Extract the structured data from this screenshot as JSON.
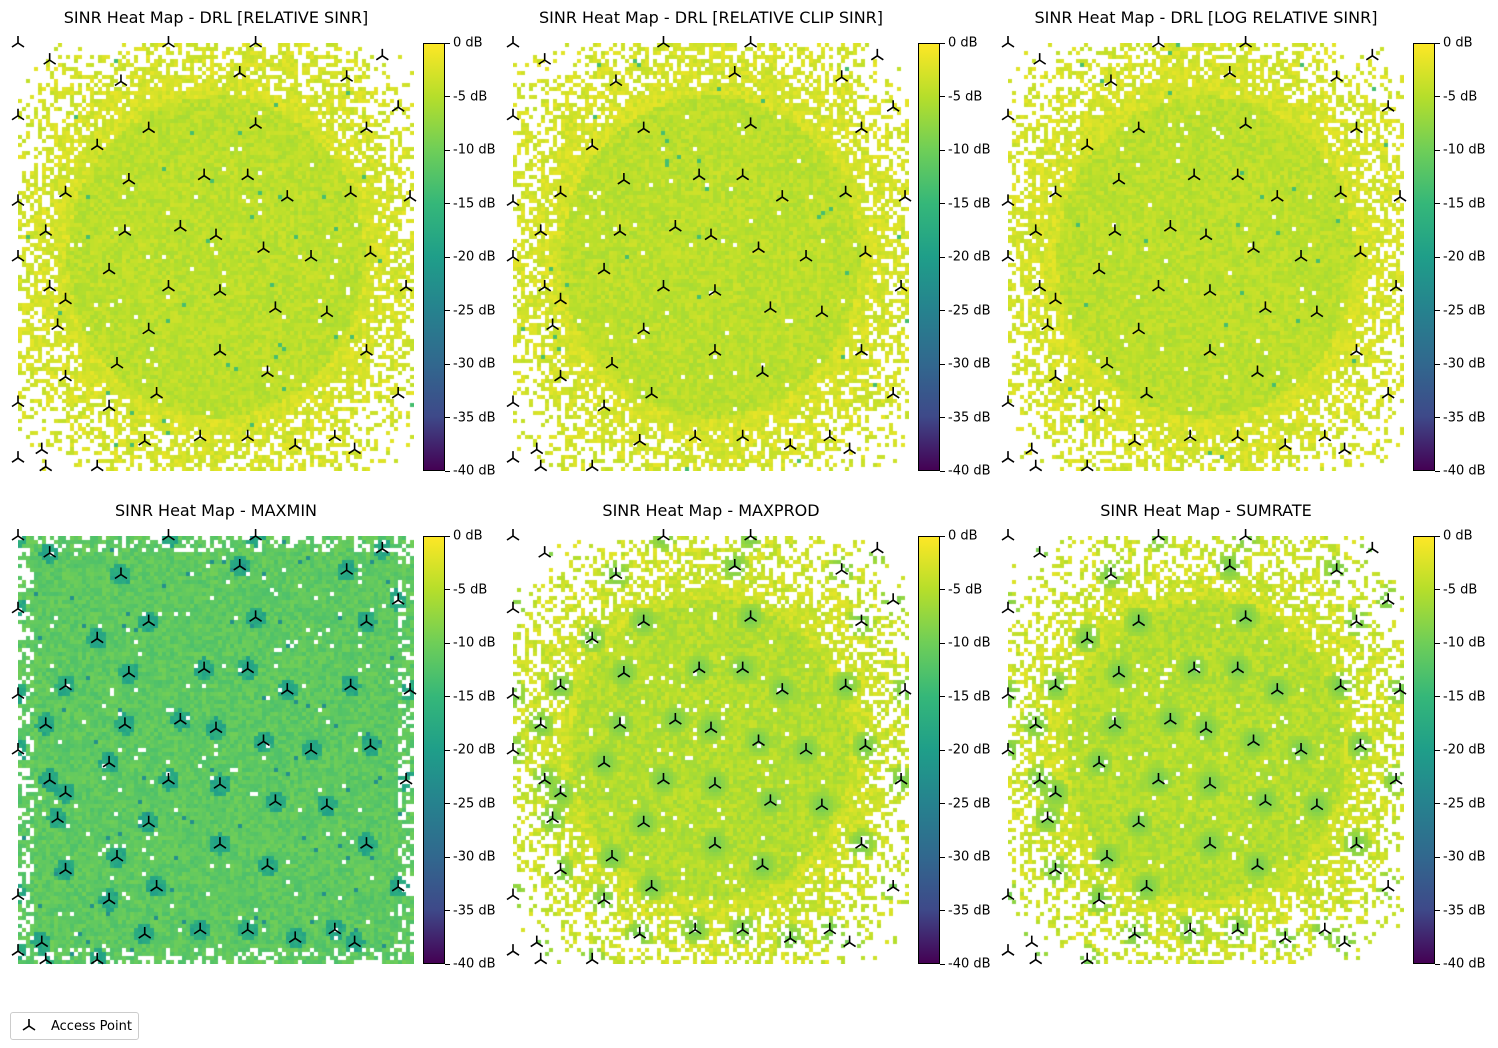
{
  "chart_data": [
    {
      "type": "heatmap",
      "title": "SINR Heat Map - DRL [RELATIVE SINR]",
      "profile": "relative"
    },
    {
      "type": "heatmap",
      "title": "SINR Heat Map - DRL [RELATIVE CLIP SINR]",
      "profile": "relative"
    },
    {
      "type": "heatmap",
      "title": "SINR Heat Map - DRL [LOG RELATIVE SINR]",
      "profile": "relative"
    },
    {
      "type": "heatmap",
      "title": "SINR Heat Map - MAXMIN",
      "profile": "maxmin"
    },
    {
      "type": "heatmap",
      "title": "SINR Heat Map - MAXPROD",
      "profile": "prod"
    },
    {
      "type": "heatmap",
      "title": "SINR Heat Map - SUMRATE",
      "profile": "prod"
    }
  ],
  "colorbar": {
    "range_db": [
      -40,
      0
    ],
    "colormap": "viridis",
    "tick_labels": [
      "0 dB",
      "-5 dB",
      "-10 dB",
      "-15 dB",
      "-20 dB",
      "-25 dB",
      "-30 dB",
      "-35 dB",
      "-40 dB"
    ]
  },
  "access_points": [
    [
      0.0,
      0.0
    ],
    [
      0.08,
      0.04
    ],
    [
      0.38,
      0.0
    ],
    [
      0.6,
      0.0
    ],
    [
      0.92,
      0.03
    ],
    [
      0.26,
      0.09
    ],
    [
      0.56,
      0.07
    ],
    [
      0.83,
      0.08
    ],
    [
      0.0,
      0.17
    ],
    [
      0.96,
      0.15
    ],
    [
      0.2,
      0.24
    ],
    [
      0.33,
      0.2
    ],
    [
      0.6,
      0.19
    ],
    [
      0.88,
      0.2
    ],
    [
      0.28,
      0.32
    ],
    [
      0.47,
      0.31
    ],
    [
      0.58,
      0.31
    ],
    [
      0.12,
      0.35
    ],
    [
      0.68,
      0.36
    ],
    [
      0.84,
      0.35
    ],
    [
      0.0,
      0.37
    ],
    [
      0.99,
      0.36
    ],
    [
      0.07,
      0.44
    ],
    [
      0.27,
      0.44
    ],
    [
      0.41,
      0.43
    ],
    [
      0.5,
      0.45
    ],
    [
      0.62,
      0.48
    ],
    [
      0.74,
      0.5
    ],
    [
      0.89,
      0.49
    ],
    [
      0.0,
      0.5
    ],
    [
      0.23,
      0.53
    ],
    [
      0.08,
      0.57
    ],
    [
      0.38,
      0.57
    ],
    [
      0.51,
      0.58
    ],
    [
      0.12,
      0.6
    ],
    [
      0.98,
      0.57
    ],
    [
      0.65,
      0.62
    ],
    [
      0.78,
      0.63
    ],
    [
      0.33,
      0.67
    ],
    [
      0.1,
      0.66
    ],
    [
      0.25,
      0.75
    ],
    [
      0.51,
      0.72
    ],
    [
      0.88,
      0.72
    ],
    [
      0.12,
      0.78
    ],
    [
      0.63,
      0.77
    ],
    [
      0.35,
      0.82
    ],
    [
      0.0,
      0.84
    ],
    [
      0.23,
      0.85
    ],
    [
      0.96,
      0.82
    ],
    [
      0.46,
      0.92
    ],
    [
      0.58,
      0.92
    ],
    [
      0.32,
      0.93
    ],
    [
      0.7,
      0.94
    ],
    [
      0.85,
      0.95
    ],
    [
      0.0,
      0.97
    ],
    [
      0.06,
      0.95
    ],
    [
      0.8,
      0.92
    ],
    [
      0.2,
      0.99
    ],
    [
      0.07,
      0.99
    ]
  ],
  "legend": {
    "label": "Access Point"
  }
}
